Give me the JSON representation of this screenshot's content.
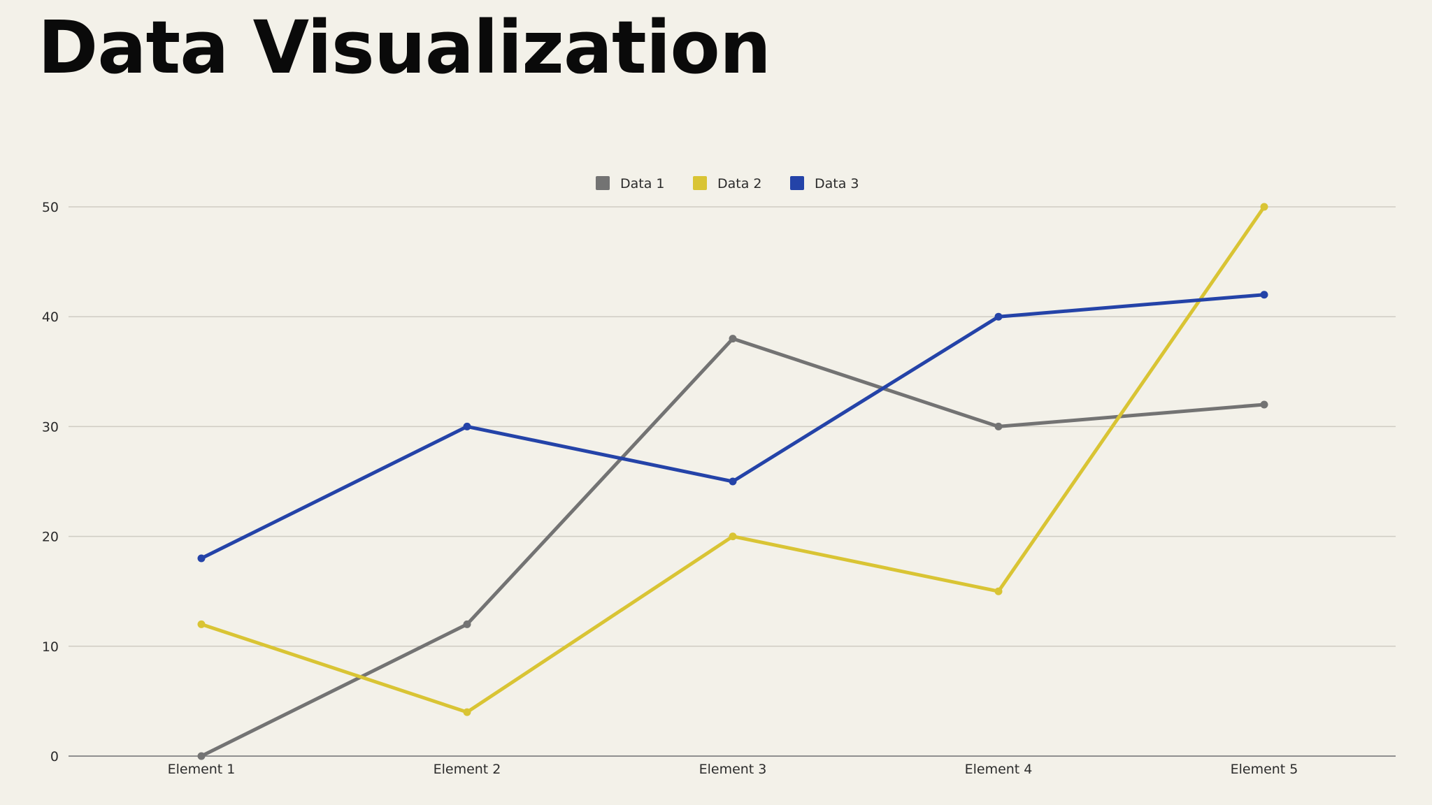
{
  "title": "Data Visualization",
  "chart_data": {
    "type": "line",
    "title": "",
    "xlabel": "",
    "ylabel": "",
    "categories": [
      "Element 1",
      "Element 2",
      "Element 3",
      "Element 4",
      "Element 5"
    ],
    "ylim": [
      0,
      50
    ],
    "yticks": [
      0,
      10,
      20,
      30,
      40,
      50
    ],
    "grid": true,
    "legend_position": "top-center",
    "series": [
      {
        "name": "Data 1",
        "color": "#737373",
        "values": [
          0,
          12,
          38,
          30,
          32
        ]
      },
      {
        "name": "Data 2",
        "color": "#d9c434",
        "values": [
          12,
          4,
          20,
          15,
          50
        ]
      },
      {
        "name": "Data 3",
        "color": "#2443a8",
        "values": [
          18,
          30,
          25,
          40,
          42
        ]
      }
    ]
  }
}
